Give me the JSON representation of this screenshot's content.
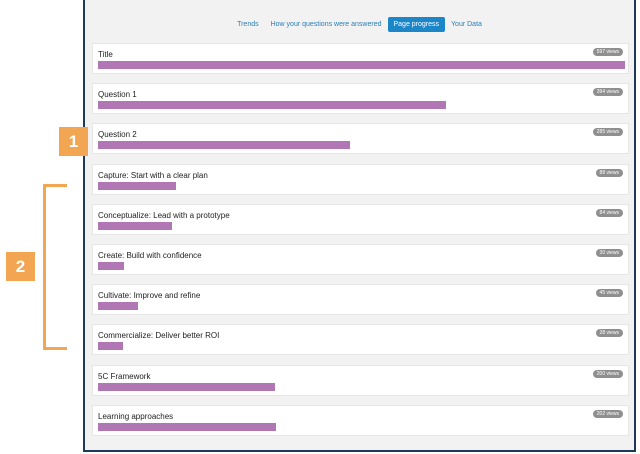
{
  "tabs": [
    {
      "label": "Trends",
      "active": false
    },
    {
      "label": "How your questions were answered",
      "active": false
    },
    {
      "label": "Page progress",
      "active": true
    },
    {
      "label": "Your Data",
      "active": false
    }
  ],
  "max_views": 597,
  "rows": [
    {
      "label": "Title",
      "views_text": "597 views",
      "views": 597
    },
    {
      "label": "Question 1",
      "views_text": "394 views",
      "views": 394
    },
    {
      "label": "Question 2",
      "views_text": "285 views",
      "views": 285
    },
    {
      "label": "Capture: Start with a clear plan",
      "views_text": "88 views",
      "views": 88
    },
    {
      "label": "Conceptualize: Lead with a prototype",
      "views_text": "84 views",
      "views": 84
    },
    {
      "label": "Create: Build with confidence",
      "views_text": "30 views",
      "views": 30
    },
    {
      "label": "Cultivate: Improve and refine",
      "views_text": "45 views",
      "views": 45
    },
    {
      "label": "Commercialize: Deliver better ROI",
      "views_text": "28 views",
      "views": 28
    },
    {
      "label": "5C Framework",
      "views_text": "200 views",
      "views": 200
    },
    {
      "label": "Learning approaches",
      "views_text": "202 views",
      "views": 202
    }
  ],
  "callouts": {
    "one": "1",
    "two": "2"
  },
  "colors": {
    "bar": "#b177b4",
    "accent": "#f2a651",
    "active_tab": "#1b87c9",
    "frame": "#1d3a5a"
  }
}
